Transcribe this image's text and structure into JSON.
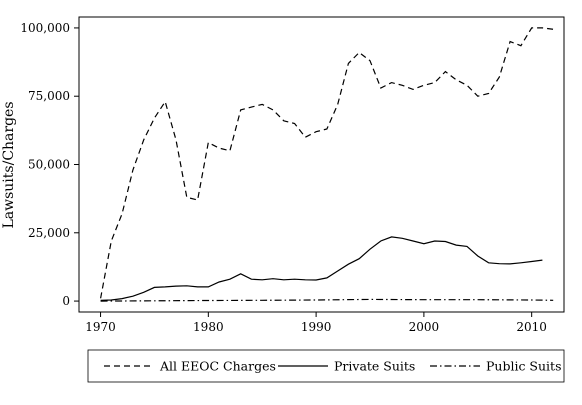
{
  "chart_data": {
    "type": "line",
    "title": "",
    "xlabel": "",
    "ylabel": "Lawsuits/Charges",
    "xlim": [
      1968,
      2013
    ],
    "ylim": [
      -4000,
      104000
    ],
    "x_ticks": [
      1970,
      1980,
      1990,
      2000,
      2010
    ],
    "y_ticks": [
      {
        "value": 0,
        "label": "0"
      },
      {
        "value": 25000,
        "label": "25,000"
      },
      {
        "value": 50000,
        "label": "50,000"
      },
      {
        "value": 75000,
        "label": "75,000"
      },
      {
        "value": 100000,
        "label": "100,000"
      }
    ],
    "grid": false,
    "legend_position": "bottom",
    "series": [
      {
        "name": "All EEOC Charges",
        "style": "dashed",
        "x": [
          1970,
          1971,
          1972,
          1973,
          1974,
          1975,
          1976,
          1977,
          1978,
          1979,
          1980,
          1981,
          1982,
          1983,
          1984,
          1985,
          1986,
          1987,
          1988,
          1989,
          1990,
          1991,
          1992,
          1993,
          1994,
          1995,
          1996,
          1997,
          1998,
          1999,
          2000,
          2001,
          2002,
          2003,
          2004,
          2005,
          2006,
          2007,
          2008,
          2009,
          2010,
          2011,
          2012
        ],
        "values": [
          1000,
          22000,
          32000,
          48000,
          59000,
          67000,
          73000,
          59000,
          38000,
          37000,
          58000,
          56000,
          55000,
          70000,
          71000,
          72000,
          70000,
          66000,
          65000,
          60000,
          62000,
          63000,
          72000,
          87000,
          91000,
          88000,
          78000,
          80000,
          79000,
          77500,
          79000,
          80000,
          84000,
          81000,
          79000,
          75000,
          76000,
          82000,
          95000,
          93500,
          100000,
          100000,
          99500
        ]
      },
      {
        "name": "Private Suits",
        "style": "solid",
        "x": [
          1970,
          1971,
          1972,
          1973,
          1974,
          1975,
          1976,
          1977,
          1978,
          1979,
          1980,
          1981,
          1982,
          1983,
          1984,
          1985,
          1986,
          1987,
          1988,
          1989,
          1990,
          1991,
          1992,
          1993,
          1994,
          1995,
          1996,
          1997,
          1998,
          1999,
          2000,
          2001,
          2002,
          2003,
          2004,
          2005,
          2006,
          2007,
          2008,
          2009,
          2010,
          2011
        ],
        "values": [
          300,
          400,
          900,
          1800,
          3200,
          5000,
          5200,
          5500,
          5600,
          5200,
          5200,
          7000,
          8000,
          10000,
          8000,
          7800,
          8200,
          7800,
          8000,
          7800,
          7700,
          8500,
          11000,
          13500,
          15500,
          19000,
          22000,
          23500,
          23000,
          22000,
          21000,
          22000,
          21800,
          20500,
          20000,
          16500,
          14000,
          13700,
          13600,
          14000,
          14500,
          15000
        ]
      },
      {
        "name": "Public Suits",
        "style": "dashdot",
        "x": [
          1970,
          1975,
          1980,
          1985,
          1990,
          1995,
          2000,
          2005,
          2010,
          2012
        ],
        "values": [
          0,
          100,
          200,
          300,
          400,
          600,
          500,
          500,
          400,
          300
        ]
      }
    ]
  }
}
